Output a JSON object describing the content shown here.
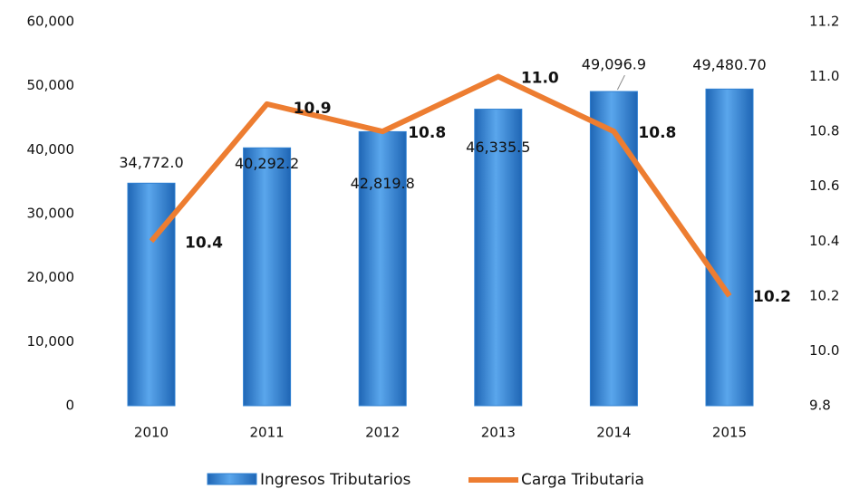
{
  "chart_data": {
    "type": "bar_line",
    "categories": [
      "2010",
      "2011",
      "2012",
      "2013",
      "2014",
      "2015"
    ],
    "series": [
      {
        "name": "Ingresos Tributarios",
        "color": "#2f80d2",
        "values": [
          34772.0,
          40292.2,
          42819.8,
          46335.5,
          49096.9,
          49480.7
        ],
        "value_labels": [
          "34,772.0",
          "40,292.2",
          "42,819.8",
          "46,335.5",
          "49,096.9",
          "49,480.70"
        ]
      },
      {
        "name": "Carga Tributaria",
        "color": "#ed7d31",
        "axis": "y2",
        "values": [
          10.4,
          10.9,
          10.8,
          11.0,
          10.8,
          10.2
        ],
        "value_labels": [
          "10.4",
          "10.9",
          "10.8",
          "11.0",
          "10.8",
          "10.2"
        ]
      }
    ],
    "ylim": [
      0,
      60000
    ],
    "yticks": [
      0,
      {
        "value": 10000,
        "label": "10,000"
      },
      {
        "value": 20000,
        "label": "20,000"
      },
      {
        "value": 30000,
        "label": "30,000"
      },
      {
        "value": 40000,
        "label": "40,000"
      },
      {
        "value": 50000,
        "label": "50,000"
      },
      {
        "value": 60000,
        "label": "60,000"
      }
    ],
    "y2lim": [
      9.8,
      11.2
    ],
    "y2ticks": [
      9.8,
      {
        "value": 10.0,
        "label": "10.0"
      },
      10.2,
      10.4,
      10.6,
      10.8,
      {
        "value": 11.0,
        "label": "11.0"
      },
      11.2
    ],
    "legend": "bottom"
  }
}
